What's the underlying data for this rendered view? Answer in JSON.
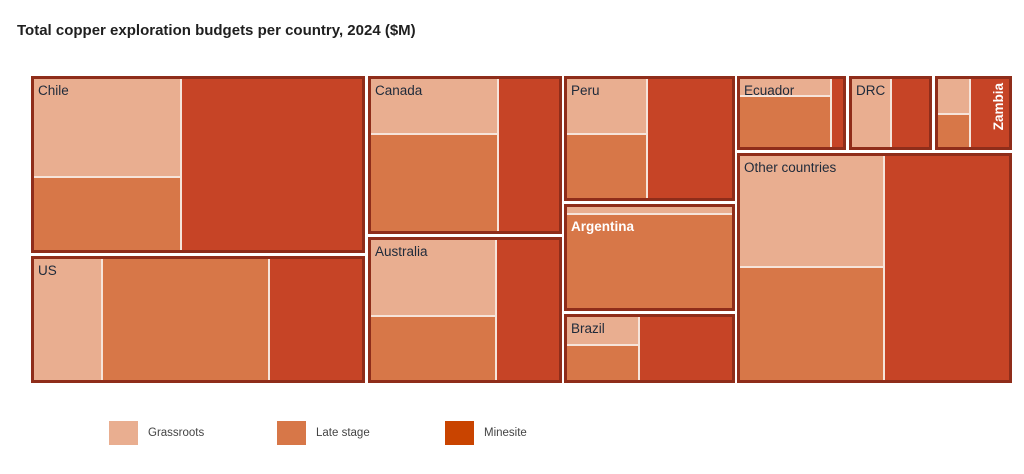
{
  "chart_data": {
    "type": "treemap",
    "title": "Total copper exploration budgets per country, 2024 ($M)",
    "stages": [
      "Grassroots",
      "Late stage",
      "Minesite"
    ],
    "colors": {
      "Grassroots": "#e9ae90",
      "Late stage": "#d77748",
      "Minesite": "#c64426",
      "border": "#8f2d1a"
    },
    "legend_position": "bottom-left",
    "countries": [
      {
        "name": "Chile",
        "relative_size": 58600,
        "shares": {
          "Grassroots": 0.26,
          "Late stage": 0.19,
          "Minesite": 0.55
        }
      },
      {
        "name": "US",
        "relative_size": 41600,
        "shares": {
          "Grassroots": 0.21,
          "Late stage": 0.51,
          "Minesite": 0.28
        }
      },
      {
        "name": "Canada",
        "relative_size": 30300,
        "shares": {
          "Grassroots": 0.25,
          "Late stage": 0.43,
          "Minesite": 0.32
        }
      },
      {
        "name": "Australia",
        "relative_size": 28000,
        "shares": {
          "Grassroots": 0.37,
          "Late stage": 0.3,
          "Minesite": 0.33
        }
      },
      {
        "name": "Peru",
        "relative_size": 21100,
        "shares": {
          "Grassroots": 0.23,
          "Late stage": 0.26,
          "Minesite": 0.51
        }
      },
      {
        "name": "Argentina",
        "relative_size": 18000,
        "shares": {
          "Grassroots": 0.07,
          "Late stage": 0.93,
          "Minesite": 0.0
        }
      },
      {
        "name": "Brazil",
        "relative_size": 11600,
        "shares": {
          "Grassroots": 0.2,
          "Late stage": 0.24,
          "Minesite": 0.56
        }
      },
      {
        "name": "Ecuador",
        "relative_size": 7900,
        "shares": {
          "Grassroots": 0.23,
          "Late stage": 0.66,
          "Minesite": 0.11
        }
      },
      {
        "name": "DRC",
        "relative_size": 6000,
        "shares": {
          "Grassroots": 0.52,
          "Late stage": 0.0,
          "Minesite": 0.48
        }
      },
      {
        "name": "Zambia",
        "relative_size": 5500,
        "shares": {
          "Grassroots": 0.25,
          "Late stage": 0.22,
          "Minesite": 0.53
        }
      },
      {
        "name": "Other countries",
        "relative_size": 62700,
        "shares": {
          "Grassroots": 0.27,
          "Late stage": 0.27,
          "Minesite": 0.46
        }
      }
    ]
  }
}
